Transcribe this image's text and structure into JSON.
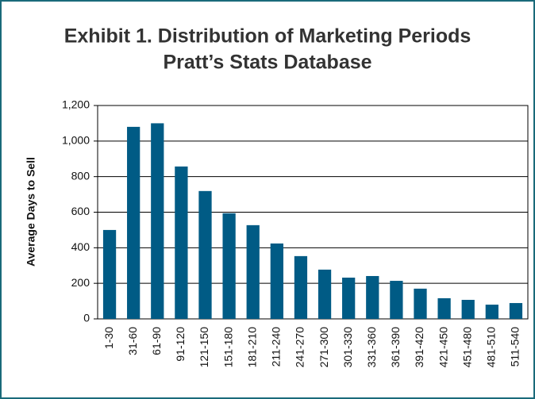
{
  "chart_data": {
    "type": "bar",
    "title": "Exhibit 1. Distribution of Marketing Periods",
    "subtitle": "Pratt’s Stats Database",
    "y_label": "Average Days to Sell",
    "categories": [
      "1-30",
      "31-60",
      "61-90",
      "91-120",
      "121-150",
      "151-180",
      "181-210",
      "211-240",
      "241-270",
      "271-300",
      "301-330",
      "331-360",
      "361-390",
      "391-420",
      "421-450",
      "451-480",
      "481-510",
      "511-540"
    ],
    "values": [
      500,
      1080,
      1100,
      857,
      719,
      594,
      527,
      424,
      353,
      277,
      232,
      241,
      214,
      170,
      116,
      107,
      80,
      89
    ],
    "color": "#005b85",
    "ylim": [
      0,
      1200
    ],
    "yticks": [
      0,
      200,
      400,
      600,
      800,
      {
        "value": 1000,
        "label": "1,000"
      },
      {
        "value": 1200,
        "label": "1,200"
      }
    ],
    "grid": true
  }
}
